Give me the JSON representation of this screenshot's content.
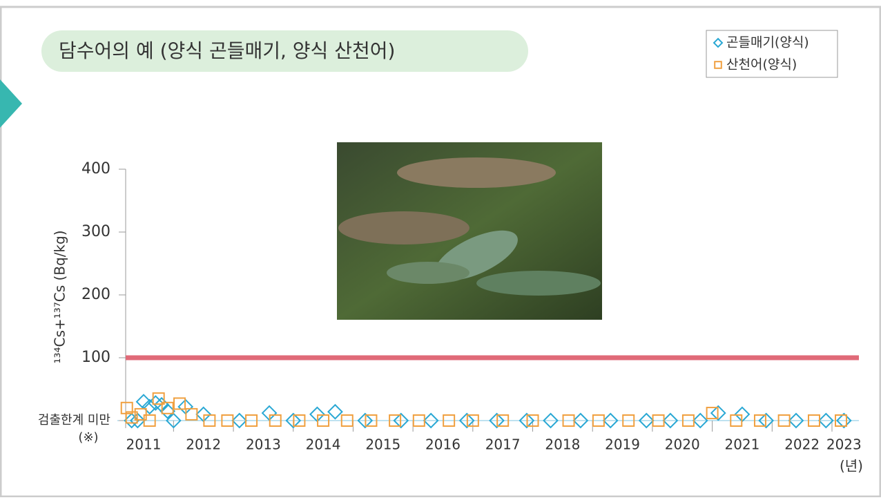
{
  "chart_data": {
    "type": "scatter",
    "title": "담수어의 예 (양식 곤들매기, 양식 산천어)",
    "y_label": "¹³⁴Cs+¹³⁷Cs (Bq/kg)",
    "x_unit": "(년)",
    "y_note": "(※)",
    "ylim": [
      0,
      400
    ],
    "yticks": [
      {
        "value": 0,
        "label": "검출한계 미만"
      },
      100,
      200,
      300,
      400
    ],
    "xlim": [
      2011.2,
      2023.45
    ],
    "xticks": [
      {
        "value": 2011.5,
        "label": "2011"
      },
      {
        "value": 2012.5,
        "label": "2012"
      },
      {
        "value": 2013.5,
        "label": "2013"
      },
      {
        "value": 2014.5,
        "label": "2014"
      },
      {
        "value": 2015.5,
        "label": "2015"
      },
      {
        "value": 2016.5,
        "label": "2016"
      },
      {
        "value": 2017.5,
        "label": "2017"
      },
      {
        "value": 2018.5,
        "label": "2018"
      },
      {
        "value": 2019.5,
        "label": "2019"
      },
      {
        "value": 2020.5,
        "label": "2020"
      },
      {
        "value": 2021.5,
        "label": "2021"
      },
      {
        "value": 2022.5,
        "label": "2022"
      },
      {
        "value": 2023.2,
        "label": "2023"
      }
    ],
    "xminor": [
      2012,
      2013,
      2014,
      2015,
      2016,
      2017,
      2018,
      2019,
      2020,
      2021,
      2022,
      2023
    ],
    "reference_line": {
      "value": 100,
      "color": "#e06a78"
    },
    "legend": "top-right",
    "series": [
      {
        "name": "곤들매기(양식)",
        "marker": "diamond",
        "color": "#2aa8d4",
        "x": [
          2011.3,
          2011.4,
          2011.5,
          2011.6,
          2011.7,
          2011.8,
          2011.9,
          2012.0,
          2012.2,
          2012.5,
          2013.1,
          2013.6,
          2014.0,
          2014.4,
          2014.7,
          2015.2,
          2015.8,
          2016.3,
          2016.9,
          2017.4,
          2017.9,
          2018.3,
          2018.8,
          2019.3,
          2019.9,
          2020.3,
          2020.8,
          2021.1,
          2021.5,
          2021.9,
          2022.4,
          2022.9,
          2023.2
        ],
        "values": [
          0,
          0,
          30,
          22,
          28,
          25,
          15,
          0,
          22,
          10,
          0,
          12,
          0,
          10,
          14,
          0,
          0,
          0,
          0,
          0,
          0,
          0,
          0,
          0,
          0,
          0,
          0,
          12,
          10,
          0,
          0,
          0,
          0
        ]
      },
      {
        "name": "산천어(양식)",
        "marker": "square",
        "color": "#f0a040",
        "x": [
          2011.22,
          2011.3,
          2011.45,
          2011.6,
          2011.75,
          2011.9,
          2012.1,
          2012.3,
          2012.6,
          2012.9,
          2013.3,
          2013.7,
          2014.1,
          2014.5,
          2014.9,
          2015.3,
          2015.7,
          2016.1,
          2016.6,
          2017.0,
          2017.5,
          2018.0,
          2018.6,
          2019.1,
          2019.6,
          2020.1,
          2020.6,
          2021.0,
          2021.4,
          2021.8,
          2022.2,
          2022.7,
          2023.15
        ],
        "values": [
          20,
          5,
          10,
          0,
          35,
          20,
          27,
          10,
          0,
          0,
          0,
          0,
          0,
          0,
          0,
          0,
          0,
          0,
          0,
          0,
          0,
          0,
          0,
          0,
          0,
          0,
          0,
          12,
          0,
          0,
          0,
          0,
          0
        ]
      }
    ]
  }
}
